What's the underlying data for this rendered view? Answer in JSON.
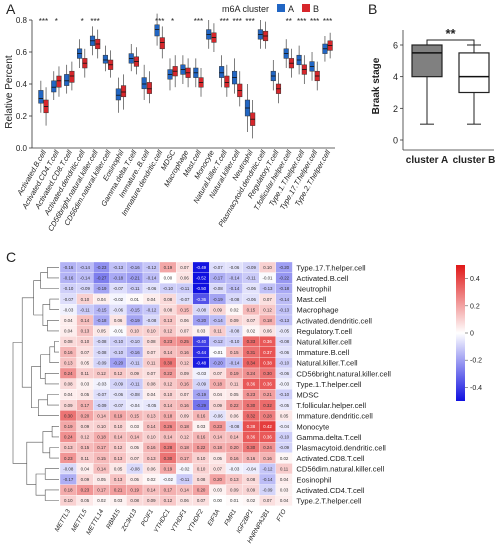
{
  "panels": {
    "a": "A",
    "b": "B",
    "c": "C"
  },
  "chart_data": [
    {
      "type": "box",
      "panel": "A",
      "legend_title": "m6A cluster",
      "legend_position": "top-center",
      "ylabel": "Relative Percent",
      "ylim": [
        0.0,
        0.8
      ],
      "yticks": [
        "0.0",
        "0.2",
        "0.4",
        "0.6",
        "0.8"
      ],
      "categories": [
        "Activated.B.cell",
        "Activated.CD4.T.cell",
        "Activated.CD8.T.cell",
        "Activated.dendritic.cell",
        "CD56bright.natural.killer.cell",
        "CD56dim.natural.killer.cell",
        "Eosinophil",
        "Gamma.delta.T.cell",
        "Immature..B.cell",
        "Immature.dendritic.cell",
        "MDSC",
        "Macrophage",
        "Mast.cell",
        "Monocyte",
        "Natural.killer.T.cell",
        "Natural.killer.cell",
        "Neutrophil",
        "Plasmacytoid.dendritic.cell",
        "Regulatory.T.cell",
        "T.follicular.helper.cell",
        "Type.1.T.helper.cell",
        "Type.17.T.helper.cell",
        "Type.2.T.helper.cell"
      ],
      "significance": [
        "***",
        "*",
        "",
        "*",
        "***",
        "",
        "",
        "",
        "",
        "***",
        "*",
        "",
        "***",
        "",
        "***",
        "***",
        "***",
        "",
        "",
        "**",
        "***",
        "***",
        "***"
      ],
      "series": [
        {
          "name": "A",
          "color": "#2166c4",
          "boxes": [
            [
              0.22,
              0.28,
              0.31,
              0.36,
              0.42
            ],
            [
              0.3,
              0.35,
              0.38,
              0.42,
              0.48
            ],
            [
              0.34,
              0.39,
              0.42,
              0.46,
              0.52
            ],
            [
              0.5,
              0.56,
              0.59,
              0.62,
              0.68
            ],
            [
              0.58,
              0.64,
              0.67,
              0.7,
              0.76
            ],
            [
              0.48,
              0.53,
              0.55,
              0.58,
              0.64
            ],
            [
              0.22,
              0.3,
              0.33,
              0.37,
              0.44
            ],
            [
              0.48,
              0.53,
              0.56,
              0.59,
              0.65
            ],
            [
              0.3,
              0.37,
              0.4,
              0.44,
              0.52
            ],
            [
              0.64,
              0.7,
              0.74,
              0.77,
              0.84
            ],
            [
              0.36,
              0.43,
              0.46,
              0.49,
              0.56
            ],
            [
              0.4,
              0.46,
              0.49,
              0.52,
              0.58
            ],
            [
              0.38,
              0.44,
              0.47,
              0.5,
              0.56
            ],
            [
              0.62,
              0.68,
              0.71,
              0.74,
              0.8
            ],
            [
              0.38,
              0.44,
              0.47,
              0.51,
              0.58
            ],
            [
              0.34,
              0.4,
              0.44,
              0.48,
              0.56
            ],
            [
              0.1,
              0.2,
              0.25,
              0.3,
              0.4
            ],
            [
              0.62,
              0.68,
              0.71,
              0.74,
              0.8
            ],
            [
              0.36,
              0.42,
              0.45,
              0.48,
              0.55
            ],
            [
              0.5,
              0.56,
              0.59,
              0.62,
              0.68
            ],
            [
              0.46,
              0.52,
              0.55,
              0.58,
              0.64
            ],
            [
              0.42,
              0.48,
              0.51,
              0.54,
              0.6
            ],
            [
              0.54,
              0.59,
              0.62,
              0.65,
              0.7
            ]
          ]
        },
        {
          "name": "B",
          "color": "#d7262b",
          "boxes": [
            [
              0.14,
              0.22,
              0.26,
              0.3,
              0.38
            ],
            [
              0.32,
              0.38,
              0.42,
              0.45,
              0.51
            ],
            [
              0.36,
              0.41,
              0.45,
              0.48,
              0.54
            ],
            [
              0.44,
              0.5,
              0.53,
              0.56,
              0.62
            ],
            [
              0.56,
              0.62,
              0.65,
              0.68,
              0.74
            ],
            [
              0.44,
              0.49,
              0.52,
              0.55,
              0.61
            ],
            [
              0.24,
              0.32,
              0.35,
              0.39,
              0.46
            ],
            [
              0.46,
              0.51,
              0.54,
              0.57,
              0.63
            ],
            [
              0.28,
              0.34,
              0.37,
              0.41,
              0.48
            ],
            [
              0.56,
              0.62,
              0.66,
              0.69,
              0.76
            ],
            [
              0.38,
              0.45,
              0.48,
              0.51,
              0.58
            ],
            [
              0.38,
              0.44,
              0.47,
              0.5,
              0.56
            ],
            [
              0.32,
              0.38,
              0.41,
              0.44,
              0.5
            ],
            [
              0.6,
              0.66,
              0.69,
              0.72,
              0.78
            ],
            [
              0.32,
              0.38,
              0.41,
              0.45,
              0.52
            ],
            [
              0.26,
              0.32,
              0.36,
              0.4,
              0.48
            ],
            [
              0.06,
              0.14,
              0.18,
              0.22,
              0.3
            ],
            [
              0.62,
              0.67,
              0.7,
              0.73,
              0.79
            ],
            [
              0.28,
              0.34,
              0.37,
              0.4,
              0.47
            ],
            [
              0.44,
              0.5,
              0.53,
              0.56,
              0.62
            ],
            [
              0.4,
              0.46,
              0.49,
              0.52,
              0.58
            ],
            [
              0.36,
              0.42,
              0.45,
              0.48,
              0.54
            ],
            [
              0.56,
              0.61,
              0.64,
              0.67,
              0.72
            ]
          ]
        }
      ]
    },
    {
      "type": "box",
      "panel": "B",
      "ylabel": "Braak stage",
      "ylim": [
        0,
        6
      ],
      "yticks": [
        "0",
        "2",
        "4",
        "6"
      ],
      "categories": [
        "cluster A",
        "cluster B"
      ],
      "significance": "**",
      "boxes": [
        {
          "name": "cluster A",
          "color": "#808080",
          "min": 1,
          "q1": 4,
          "median": 5.5,
          "q3": 6,
          "max": 6
        },
        {
          "name": "cluster B",
          "color": "#ffffff",
          "min": 1,
          "q1": 3,
          "median": 4,
          "q3": 5.5,
          "max": 6
        }
      ]
    },
    {
      "type": "heatmap",
      "panel": "C",
      "colorbar": {
        "ticks": [
          "0.4",
          "0.2",
          "0",
          "-0.2",
          "-0.4"
        ],
        "range": [
          -0.5,
          0.5
        ],
        "low": "#1010e0",
        "mid": "#ffffff",
        "high": "#e01818"
      },
      "columns": [
        "METTL3",
        "METTL5",
        "METTL14",
        "RBM15",
        "ZC3H13",
        "PCIF1",
        "YTHDC1",
        "YTHDF1",
        "YTHDF2",
        "EIF3A",
        "FMR1",
        "IGF2BP1",
        "HNRNPA2B1",
        "FTO"
      ],
      "rows": [
        "Type.17.T.helper.cell",
        "Activated.B.cell",
        "Neutrophil",
        "Mast.cell",
        "Macrophage",
        "Activated.dendritic.cell",
        "Regulatory.T.cell",
        "Natural.killer.cell",
        "Immature.B.cell",
        "Natural.killer.T.cell",
        "CD56bright.natural.killer.cell",
        "Type.1.T.helper.cell",
        "MDSC",
        "T.follicular.helper.cell",
        "Immature.dendritic.cell",
        "Monocyte",
        "Gamma.delta.T.cell",
        "Plasmacytoid.dendritic.cell",
        "Activated.CD8.T.cell",
        "CD56dim.natural.killer.cell",
        "Eosinophil",
        "Activated.CD4.T.cell",
        "Type.2.T.helper.cell"
      ],
      "values": [
        [
          -0.16,
          -0.14,
          -0.23,
          -0.13,
          -0.16,
          -0.12,
          0.19,
          0.07,
          -0.49,
          -0.07,
          -0.06,
          -0.09,
          0.1,
          -0.2
        ],
        [
          -0.16,
          -0.14,
          -0.27,
          -0.18,
          -0.21,
          -0.14,
          0.0,
          0.06,
          -0.52,
          -0.17,
          -0.14,
          -0.11,
          -0.01,
          -0.22
        ],
        [
          -0.1,
          -0.09,
          -0.19,
          -0.07,
          -0.11,
          -0.06,
          -0.1,
          -0.11,
          -0.5,
          -0.08,
          -0.14,
          -0.06,
          -0.13,
          -0.18
        ],
        [
          -0.07,
          0.1,
          0.04,
          -0.02,
          0.01,
          0.04,
          0.08,
          -0.07,
          -0.36,
          -0.19,
          -0.08,
          -0.06,
          0.07,
          -0.14
        ],
        [
          -0.03,
          -0.11,
          -0.15,
          -0.06,
          -0.15,
          -0.12,
          0.08,
          0.15,
          -0.08,
          0.09,
          0.02,
          0.15,
          0.12,
          -0.13
        ],
        [
          0.04,
          0.14,
          -0.18,
          0.06,
          -0.19,
          -0.08,
          0.13,
          0.06,
          -0.2,
          -0.14,
          0.09,
          0.07,
          0.18,
          -0.13
        ],
        [
          0.04,
          0.13,
          0.05,
          -0.01,
          0.1,
          0.1,
          0.12,
          0.07,
          0.03,
          0.11,
          -0.08,
          0.02,
          0.06,
          -0.05
        ],
        [
          0.08,
          0.1,
          -0.08,
          -0.1,
          -0.1,
          0.08,
          0.23,
          0.25,
          -0.4,
          -0.12,
          -0.1,
          0.33,
          0.36,
          -0.08
        ],
        [
          0.16,
          0.07,
          -0.08,
          -0.1,
          -0.16,
          0.07,
          0.14,
          0.16,
          -0.44,
          -0.01,
          0.15,
          0.31,
          0.37,
          -0.06
        ],
        [
          0.13,
          0.05,
          -0.09,
          -0.2,
          -0.11,
          0.11,
          0.3,
          0.12,
          -0.48,
          -0.2,
          -0.14,
          0.34,
          0.38,
          -0.1
        ],
        [
          0.24,
          0.11,
          0.12,
          0.12,
          0.09,
          0.07,
          0.22,
          0.09,
          -0.03,
          0.07,
          0.19,
          0.24,
          0.3,
          -0.06
        ],
        [
          0.08,
          0.03,
          -0.03,
          -0.09,
          -0.11,
          0.08,
          0.12,
          0.16,
          -0.09,
          0.18,
          0.11,
          0.36,
          0.36,
          -0.03
        ],
        [
          0.04,
          0.05,
          -0.07,
          -0.06,
          -0.08,
          0.04,
          0.1,
          0.07,
          -0.19,
          0.04,
          0.05,
          0.23,
          0.21,
          -0.1
        ],
        [
          0.09,
          0.17,
          -0.09,
          -0.07,
          -0.04,
          -0.05,
          0.14,
          0.16,
          -0.29,
          0.09,
          0.22,
          0.3,
          0.32,
          -0.05
        ],
        [
          0.3,
          0.2,
          0.14,
          0.19,
          0.15,
          0.13,
          0.18,
          0.09,
          0.16,
          -0.06,
          0.06,
          0.32,
          0.28,
          0.05
        ],
        [
          0.19,
          0.09,
          0.1,
          0.1,
          0.03,
          0.14,
          0.26,
          0.18,
          0.03,
          0.23,
          -0.08,
          0.38,
          0.42,
          -0.04
        ],
        [
          0.24,
          0.12,
          0.18,
          0.14,
          0.14,
          0.1,
          0.14,
          0.12,
          0.16,
          0.14,
          0.14,
          0.36,
          0.36,
          -0.1
        ],
        [
          0.13,
          0.15,
          0.17,
          0.12,
          0.05,
          0.16,
          0.28,
          0.18,
          0.22,
          0.18,
          0.2,
          0.3,
          0.24,
          -0.09
        ],
        [
          0.23,
          0.11,
          0.15,
          0.13,
          0.07,
          0.13,
          0.3,
          0.17,
          0.1,
          0.05,
          0.16,
          0.16,
          0.16,
          0.02
        ],
        [
          -0.08,
          0.04,
          0.14,
          0.05,
          -0.08,
          0.06,
          0.19,
          -0.02,
          0.1,
          0.07,
          -0.03,
          -0.04,
          -0.12,
          0.11
        ],
        [
          -0.17,
          0.09,
          0.05,
          0.13,
          0.05,
          0.02,
          -0.02,
          -0.11,
          0.08,
          0.2,
          0.13,
          0.08,
          -0.14,
          0.04
        ],
        [
          0.18,
          0.23,
          0.17,
          0.21,
          0.19,
          0.14,
          0.17,
          0.14,
          0.2,
          0.03,
          0.09,
          0.09,
          -0.09,
          0.03
        ],
        [
          0.1,
          0.05,
          0.02,
          0.03,
          0.08,
          0.09,
          0.12,
          0.06,
          0.07,
          0.0,
          0.01,
          0.02,
          0.07,
          0.04
        ]
      ]
    }
  ]
}
